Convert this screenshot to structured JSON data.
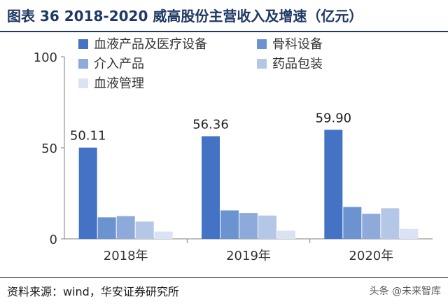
{
  "title": "图表 36 2018-2020 威高股份主营收入及增速（亿元）",
  "source": "资料来源：wind，华安证券研究所",
  "watermark": "头条 @未来智库",
  "chart_data": {
    "type": "bar",
    "categories": [
      "2018年",
      "2019年",
      "2020年"
    ],
    "ylim": [
      0,
      100
    ],
    "yticks": [
      0,
      50,
      100
    ],
    "grid": false,
    "legend_position": "top",
    "series": [
      {
        "name": "血液产品及医疗设备",
        "color": "#4472c4",
        "values": [
          50.11,
          56.36,
          59.9
        ],
        "labels": [
          "50.11",
          "56.36",
          "59.90"
        ]
      },
      {
        "name": "骨科设备",
        "color": "#6a93d0",
        "values": [
          11.8,
          15.6,
          17.5
        ]
      },
      {
        "name": "介入产品",
        "color": "#8eaadb",
        "values": [
          12.5,
          14.2,
          13.8
        ]
      },
      {
        "name": "药品包装",
        "color": "#b4c7e7",
        "values": [
          9.5,
          12.8,
          16.8
        ]
      },
      {
        "name": "血液管理",
        "color": "#dae3f3",
        "values": [
          4.0,
          4.5,
          5.5
        ]
      }
    ]
  }
}
